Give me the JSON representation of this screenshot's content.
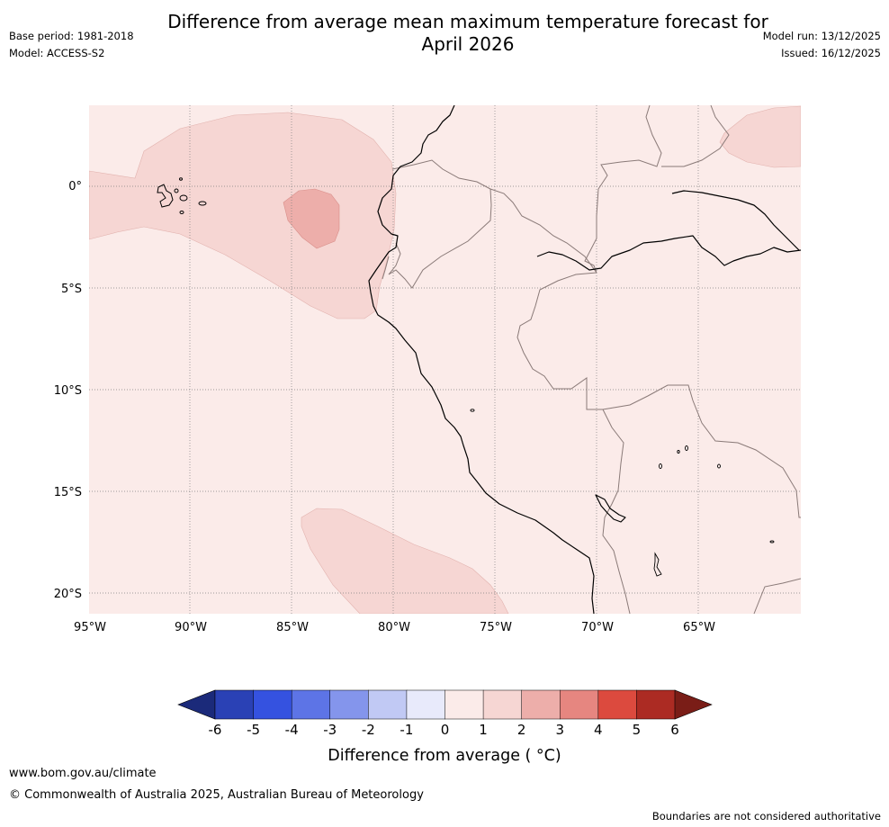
{
  "header": {
    "title_line1": "Difference from average mean maximum temperature forecast for",
    "title_line2": "April 2026",
    "base_period": "Base period: 1981-2018",
    "model": "Model: ACCESS-S2",
    "model_run": "Model run: 13/12/2025",
    "issued": "Issued: 16/12/2025"
  },
  "map": {
    "lon_labels": [
      "95°W",
      "90°W",
      "85°W",
      "80°W",
      "75°W",
      "70°W",
      "65°W"
    ],
    "lat_labels": [
      "0°",
      "5°S",
      "10°S",
      "15°S",
      "20°S"
    ],
    "background_anomaly_class": "0 to 1",
    "colors": {
      "class_0_1": "#fbebe9",
      "class_1_2": "#f6d6d3",
      "class_2_3": "#edaeaa",
      "coastline": "#000000",
      "border": "#8a7a78",
      "gridline": "#7f7f7f"
    }
  },
  "colorbar": {
    "title": "Difference from average ( °C)",
    "ticks": [
      "-6",
      "-5",
      "-4",
      "-3",
      "-2",
      "-1",
      "0",
      "1",
      "2",
      "3",
      "4",
      "5",
      "6"
    ],
    "colors": [
      "#1b2a7a",
      "#2a41b5",
      "#3552e0",
      "#5d74e6",
      "#8495ec",
      "#c1c9f4",
      "#e8eafb",
      "#fbebe9",
      "#f6d6d3",
      "#edaeaa",
      "#e68680",
      "#dc4a3e",
      "#ac2b23",
      "#7a1d17"
    ]
  },
  "footer": {
    "url": "www.bom.gov.au/climate",
    "copyright": "© Commonwealth of Australia 2025, Australian Bureau of Meteorology",
    "note": "Boundaries are not considered authoritative"
  }
}
